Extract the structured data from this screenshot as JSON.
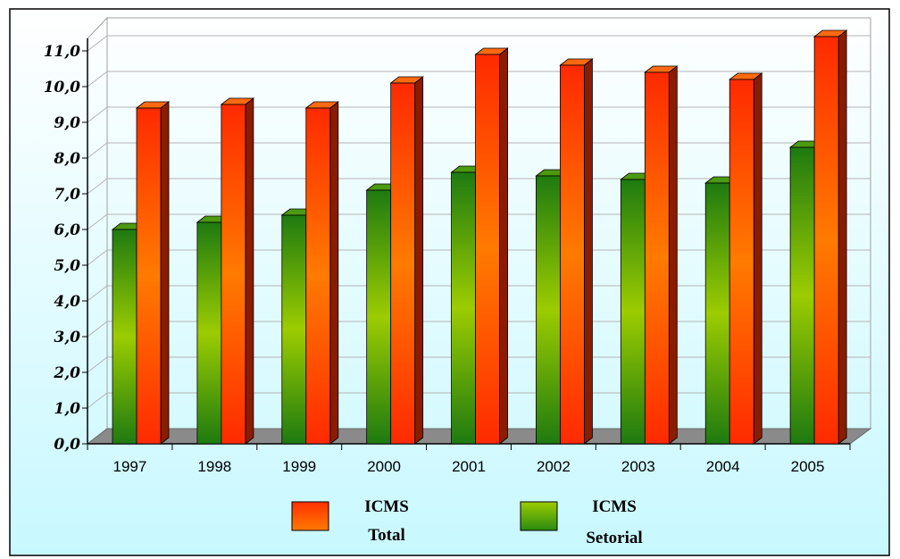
{
  "chart_data": {
    "type": "bar",
    "title": "",
    "xlabel": "",
    "ylabel": "",
    "categories": [
      "1997",
      "1998",
      "1999",
      "2000",
      "2001",
      "2002",
      "2003",
      "2004",
      "2005"
    ],
    "series": [
      {
        "name": "ICMS Setorial",
        "values": [
          6.0,
          6.2,
          6.4,
          7.1,
          7.6,
          7.5,
          7.4,
          7.3,
          8.3
        ],
        "color": "#5aa000"
      },
      {
        "name": "ICMS Total",
        "values": [
          9.4,
          9.5,
          9.4,
          10.1,
          10.9,
          10.6,
          10.4,
          10.2,
          11.4
        ],
        "color": "#ff5a00"
      }
    ],
    "ylim": [
      0,
      11
    ],
    "yticks": [
      "0,0",
      "1,0",
      "2,0",
      "3,0",
      "4,0",
      "5,0",
      "6,0",
      "7,0",
      "8,0",
      "9,0",
      "10,0",
      "11,0"
    ],
    "grid": true,
    "legend_position": "bottom",
    "legend": [
      {
        "line1": "ICMS",
        "line2": "Total",
        "series": "ICMS Total"
      },
      {
        "line1": "ICMS",
        "line2": "Setorial",
        "series": "ICMS Setorial"
      }
    ]
  }
}
